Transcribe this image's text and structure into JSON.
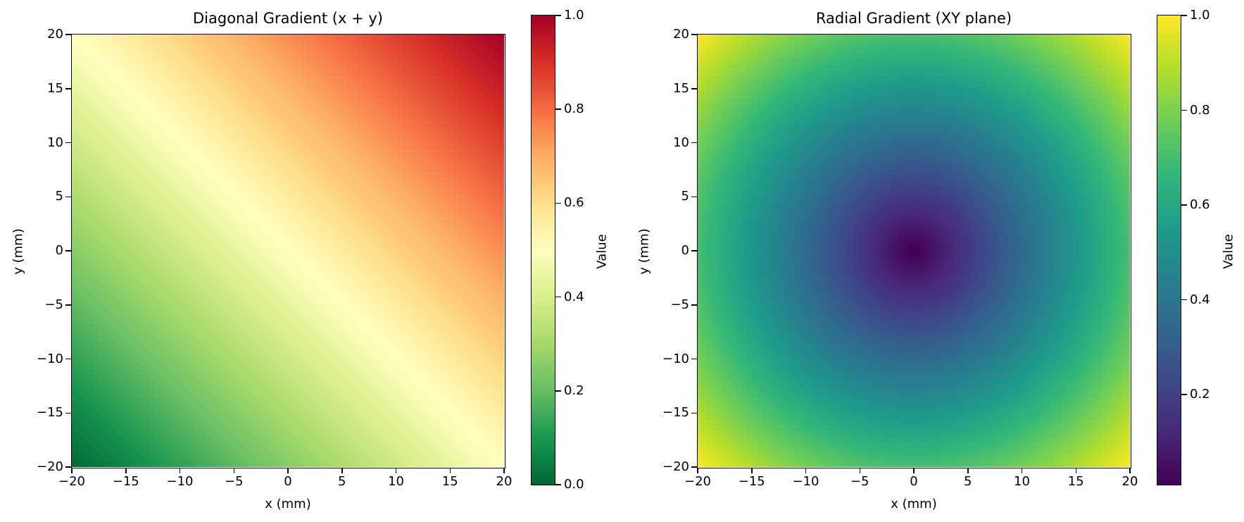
{
  "chart_data": [
    {
      "type": "heatmap",
      "title": "Diagonal Gradient (x + y)",
      "xlabel": "x (mm)",
      "ylabel": "y (mm)",
      "xlim": [
        -20,
        20
      ],
      "ylim": [
        -20,
        20
      ],
      "xticks": [
        -20,
        -15,
        -10,
        -5,
        0,
        5,
        10,
        15,
        20
      ],
      "yticks": [
        -20,
        -15,
        -10,
        -5,
        0,
        5,
        10,
        15,
        20
      ],
      "function": "(x + y + 40) / 80",
      "colormap": "RdYlGn_r",
      "colorbar": {
        "label": "Value",
        "range": [
          0.0,
          1.0
        ],
        "ticks": [
          0.0,
          0.2,
          0.4,
          0.6,
          0.8,
          1.0
        ]
      }
    },
    {
      "type": "heatmap",
      "title": "Radial Gradient (XY plane)",
      "xlabel": "x (mm)",
      "ylabel": "y (mm)",
      "xlim": [
        -20,
        20
      ],
      "ylim": [
        -20,
        20
      ],
      "xticks": [
        -20,
        -15,
        -10,
        -5,
        0,
        5,
        10,
        15,
        20
      ],
      "yticks": [
        -20,
        -15,
        -10,
        -5,
        0,
        5,
        10,
        15,
        20
      ],
      "function": "sqrt(x^2 + y^2) / sqrt(800)",
      "colormap": "viridis",
      "colorbar": {
        "label": "Value",
        "range": [
          0.01,
          1.0
        ],
        "ticks": [
          0.2,
          0.4,
          0.6,
          0.8,
          1.0
        ]
      }
    }
  ],
  "panels": [
    {
      "title": "Diagonal Gradient (x + y)",
      "xlabel": "x (mm)",
      "ylabel": "y (mm)",
      "xtick_labels": [
        "−20",
        "−15",
        "−10",
        "−5",
        "0",
        "5",
        "10",
        "15",
        "20"
      ],
      "ytick_labels": [
        "−20",
        "−15",
        "−10",
        "−5",
        "0",
        "5",
        "10",
        "15",
        "20"
      ],
      "cbar_label": "Value",
      "cbar_tick_labels": [
        "0.0",
        "0.2",
        "0.4",
        "0.6",
        "0.8",
        "1.0"
      ]
    },
    {
      "title": "Radial Gradient (XY plane)",
      "xlabel": "x (mm)",
      "ylabel": "y (mm)",
      "xtick_labels": [
        "−20",
        "−15",
        "−10",
        "−5",
        "0",
        "5",
        "10",
        "15",
        "20"
      ],
      "ytick_labels": [
        "−20",
        "−15",
        "−10",
        "−5",
        "0",
        "5",
        "10",
        "15",
        "20"
      ],
      "cbar_label": "Value",
      "cbar_tick_labels": [
        "0.2",
        "0.4",
        "0.6",
        "0.8",
        "1.0"
      ]
    }
  ],
  "colormaps": {
    "RdYlGn_r": [
      "#006837",
      "#1a9850",
      "#66bd63",
      "#a6d96a",
      "#d9ef8b",
      "#ffffbf",
      "#fee08b",
      "#fdae61",
      "#f46d43",
      "#d73027",
      "#a50026"
    ],
    "viridis": [
      "#440154",
      "#482878",
      "#3e4989",
      "#31688e",
      "#26828e",
      "#1f9e89",
      "#35b779",
      "#6ece58",
      "#b5de2b",
      "#fde725"
    ]
  }
}
